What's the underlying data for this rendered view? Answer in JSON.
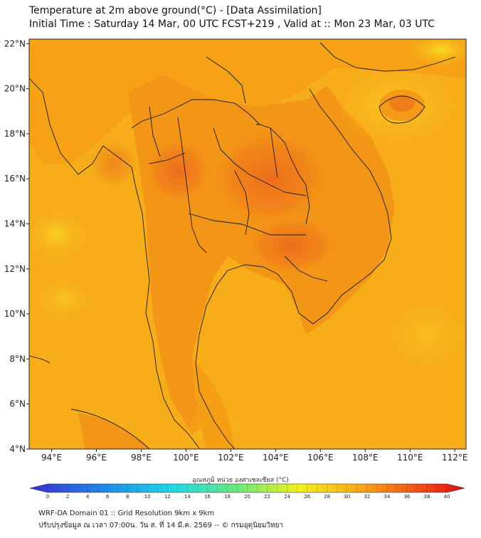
{
  "header": {
    "title_line1": "Temperature at 2m above ground(°C) - [Data Assimilation]",
    "title_line2": "Initial Time : Saturday 14 Mar, 00 UTC FCST+219 , Valid at :: Mon 23 Mar, 03 UTC"
  },
  "map": {
    "lon_labels": [
      "94°E",
      "96°E",
      "98°E",
      "100°E",
      "102°E",
      "104°E",
      "106°E",
      "108°E",
      "110°E",
      "112°E"
    ],
    "lat_labels": [
      "4°N",
      "6°N",
      "8°N",
      "10°N",
      "12°N",
      "14°N",
      "16°N",
      "18°N",
      "20°N",
      "22°N"
    ],
    "lon_range": [
      93,
      112.5
    ],
    "lat_range": [
      4,
      22.2
    ],
    "field": "2m temperature (°C)",
    "colors": {
      "sea": "#f7b11a",
      "land": "#f59a14",
      "hot": "#ee6e1a",
      "coast": "#1a1a1a"
    }
  },
  "colorbar": {
    "label": "อุณหภูมิ หน่วย องศาเซลเซียส (°C)",
    "ticks": [
      "0",
      "2",
      "4",
      "6",
      "8",
      "10",
      "12",
      "14",
      "16",
      "18",
      "20",
      "22",
      "24",
      "26",
      "28",
      "30",
      "32",
      "34",
      "36",
      "38",
      "40"
    ],
    "range": [
      0,
      40
    ],
    "colors": [
      "#3b2bd6",
      "#1f8fe6",
      "#22d8e8",
      "#6ee87a",
      "#f3f01e",
      "#f8a818",
      "#ee4c17",
      "#e50d10"
    ]
  },
  "footer": {
    "line1": "WRF-DA Domain 01 :: Grid Resolution 9km x 9km",
    "line2": "ปรับปรุงข้อมูล ณ เวลา 07:00น. วัน ส. ที่ 14 มี.ค. 2569 -- © กรมอุตุนิยมวิทยา"
  }
}
